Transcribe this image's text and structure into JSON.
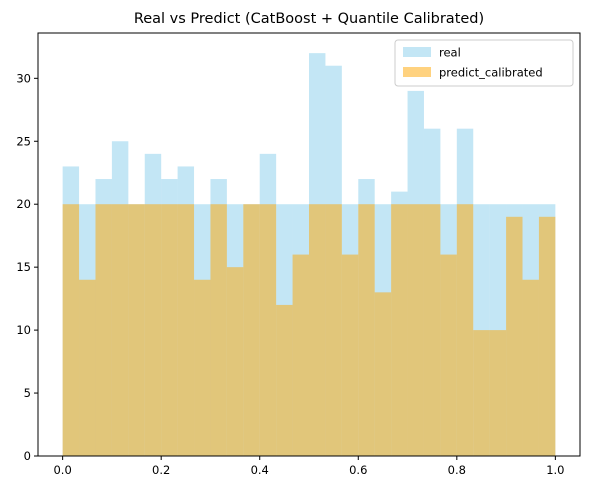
{
  "chart_data": {
    "type": "histogram",
    "title": "Real vs Predict (CatBoost + Quantile Calibrated)",
    "xlabel": "",
    "ylabel": "",
    "xlim": [
      -0.05,
      1.05
    ],
    "ylim": [
      0,
      33.6
    ],
    "x_ticks": [
      "0.0",
      "0.2",
      "0.4",
      "0.6",
      "0.8",
      "1.0"
    ],
    "y_ticks": [
      "0",
      "5",
      "10",
      "15",
      "20",
      "25",
      "30"
    ],
    "grid": false,
    "legend_position": "top-right",
    "bins": 30,
    "bin_range": [
      0,
      1
    ],
    "series": [
      {
        "name": "real",
        "color": "#87ceeb",
        "alpha": 0.5,
        "values": [
          23,
          20,
          22,
          25,
          20,
          24,
          22,
          23,
          20,
          22,
          20,
          20,
          24,
          20,
          20,
          32,
          31,
          20,
          22,
          20,
          21,
          29,
          26,
          20,
          26,
          20,
          20,
          20,
          20,
          20
        ]
      },
      {
        "name": "predict_calibrated",
        "color": "#ffa500",
        "alpha": 0.5,
        "values": [
          20,
          14,
          20,
          20,
          20,
          20,
          20,
          20,
          14,
          20,
          15,
          20,
          20,
          12,
          16,
          20,
          20,
          16,
          20,
          13,
          20,
          20,
          20,
          16,
          20,
          10,
          10,
          19,
          14,
          19
        ]
      }
    ]
  }
}
